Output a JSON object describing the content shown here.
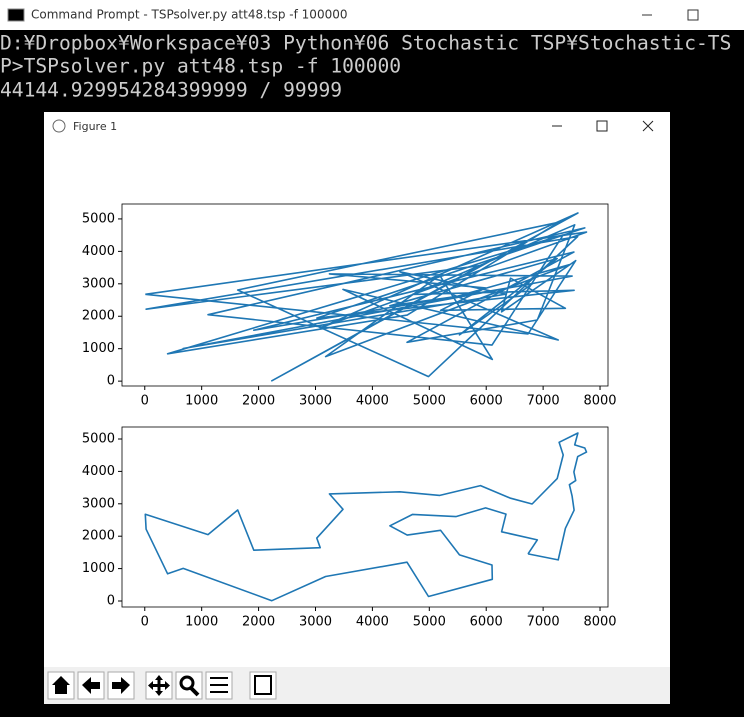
{
  "window": {
    "title": "Command Prompt - TSPsolver.py  att48.tsp -f 100000"
  },
  "console": {
    "lines": [
      "D:¥Dropbox¥Workspace¥03 Python¥06 Stochastic TSP¥Stochastic-TS",
      "P>TSPsolver.py att48.tsp -f 100000",
      "44144.929954284399999 / 99999"
    ]
  },
  "figure_window": {
    "title": "Figure 1"
  },
  "chart_data": [
    {
      "type": "line",
      "x": [
        10,
        7762,
        3082,
        7611,
        2233,
        5900,
        23,
        7608,
        4985,
        1633,
        7280,
        4612,
        401,
        7352,
        6101,
        1112,
        7732,
        3023,
        7545,
        4706,
        7555,
        6898,
        4608,
        7541,
        1916,
        6807,
        5530,
        7248,
        4307,
        5468,
        7462,
        3177,
        5185,
        6107,
        3484,
        7265,
        4483,
        6347,
        675,
        7509,
        3245,
        5989,
        5199,
        7392,
        6426,
        6271,
        7573,
        6734,
        10
      ],
      "series": [
        {
          "color": "#1f77b4",
          "values": [
            2676,
            4595,
            1644,
            5184,
            10,
            3561,
            2216,
            4458,
            140,
            2809,
            4899,
            2035,
            841,
            4506,
            1110,
            2049,
            4723,
            1942,
            2801,
            2674,
            4819,
            1885,
            1198,
            3981,
            1569,
            2993,
            1424,
            3779,
            2322,
            2606,
            3590,
            756,
            3258,
            669,
            2829,
            1268,
            3369,
            2683,
            1006,
            3239,
            3305,
            2873,
            2182,
            2244,
            3173,
            2135,
            3716,
            1453,
            2676
          ]
        }
      ],
      "xlim": [
        -400,
        8140
      ],
      "xticks": [
        0,
        1000,
        2000,
        3000,
        4000,
        5000,
        6000,
        7000,
        8000
      ],
      "ylim": [
        -150,
        5460
      ],
      "yticks": [
        0,
        1000,
        2000,
        3000,
        4000,
        5000
      ]
    },
    {
      "type": "line",
      "x": [
        6734,
        7265,
        7392,
        7545,
        7509,
        7462,
        7573,
        7541,
        7608,
        7762,
        7732,
        7555,
        7611,
        7280,
        7352,
        7248,
        6807,
        6426,
        5900,
        5185,
        4483,
        3245,
        3484,
        3023,
        3082,
        1916,
        1633,
        1112,
        10,
        23,
        401,
        675,
        2233,
        3177,
        4608,
        4985,
        6107,
        6101,
        5530,
        5199,
        4612,
        4307,
        4706,
        5468,
        5989,
        6347,
        6271,
        6898,
        6734
      ],
      "series": [
        {
          "color": "#1f77b4",
          "values": [
            1453,
            1268,
            2244,
            2801,
            3239,
            3590,
            3716,
            3981,
            4458,
            4595,
            4723,
            4819,
            5184,
            4899,
            4506,
            3779,
            2993,
            3173,
            3561,
            3258,
            3369,
            3305,
            2829,
            1942,
            1644,
            1569,
            2809,
            2049,
            2676,
            2216,
            841,
            1006,
            10,
            756,
            1198,
            140,
            669,
            1110,
            1424,
            2182,
            2035,
            2322,
            2674,
            2606,
            2873,
            2683,
            2135,
            1885,
            1453
          ]
        }
      ],
      "xlim": [
        -400,
        8140
      ],
      "xticks": [
        0,
        1000,
        2000,
        3000,
        4000,
        5000,
        6000,
        7000,
        8000
      ],
      "ylim": [
        -185,
        5370
      ],
      "yticks": [
        0,
        1000,
        2000,
        3000,
        4000,
        5000
      ]
    }
  ]
}
